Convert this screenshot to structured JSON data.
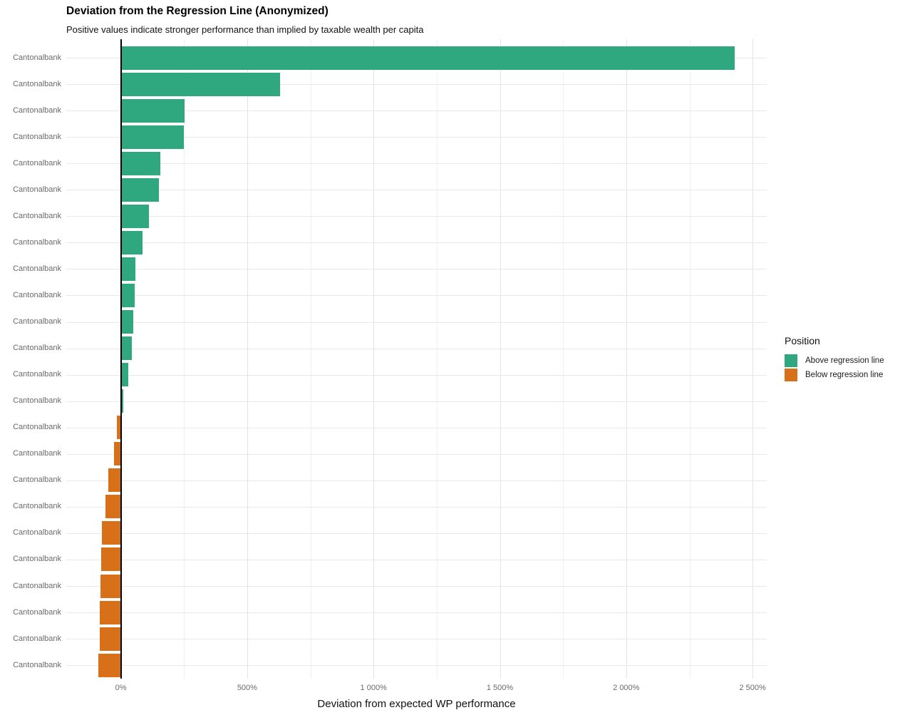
{
  "title": "Deviation from the Regression Line (Anonymized)",
  "subtitle": "Positive values indicate stronger performance than implied by taxable wealth per capita",
  "xlabel": "Deviation from expected WP performance",
  "legend": {
    "title": "Position",
    "items": [
      {
        "label": "Above regression line",
        "color": "#2fa77f"
      },
      {
        "label": "Below regression line",
        "color": "#d8701a"
      }
    ]
  },
  "chart_data": {
    "type": "bar",
    "orientation": "horizontal",
    "title": "Deviation from the Regression Line (Anonymized)",
    "subtitle": "Positive values indicate stronger performance than implied by taxable wealth per capita",
    "xlabel": "Deviation from expected WP performance",
    "ylabel": "",
    "categories": [
      "Cantonalbank",
      "Cantonalbank",
      "Cantonalbank",
      "Cantonalbank",
      "Cantonalbank",
      "Cantonalbank",
      "Cantonalbank",
      "Cantonalbank",
      "Cantonalbank",
      "Cantonalbank",
      "Cantonalbank",
      "Cantonalbank",
      "Cantonalbank",
      "Cantonalbank",
      "Cantonalbank",
      "Cantonalbank",
      "Cantonalbank",
      "Cantonalbank",
      "Cantonalbank",
      "Cantonalbank",
      "Cantonalbank",
      "Cantonalbank",
      "Cantonalbank",
      "Cantonalbank"
    ],
    "values": [
      2430,
      630,
      251,
      250,
      156,
      152,
      112,
      86,
      58,
      56,
      49,
      43,
      29,
      10,
      -15,
      -26,
      -50,
      -61,
      -75,
      -78,
      -82,
      -84,
      -85,
      -89
    ],
    "value_unit": "%",
    "color_positive": "#2fa77f",
    "color_negative": "#d8701a",
    "xlim": [
      -216,
      2556
    ],
    "x_major_ticks": [
      0,
      500,
      1000,
      1500,
      2000,
      2500
    ],
    "x_tick_labels": [
      "0%",
      "500%",
      "1 000%",
      "1 500%",
      "2 000%",
      "2 500%"
    ],
    "x_minor_ticks": [
      250,
      750,
      1250,
      1750,
      2250
    ],
    "zero_line": 0,
    "grid": true,
    "legend_position": "right",
    "grid_color_major": "#e3e3e3",
    "grid_color_minor": "#f0f0f0",
    "grid_color_row": "#e8e8e8",
    "zero_line_color": "#000000"
  }
}
